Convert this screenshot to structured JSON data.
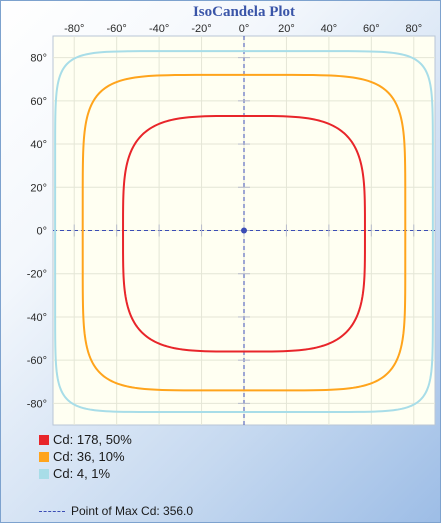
{
  "chart_data": {
    "type": "line",
    "title": "IsoCandela Plot",
    "x_ticks": [
      "-80°",
      "-60°",
      "-40°",
      "-20°",
      "0°",
      "20°",
      "40°",
      "60°",
      "80°"
    ],
    "y_ticks": [
      "80°",
      "60°",
      "40°",
      "20°",
      "0°",
      "-20°",
      "-40°",
      "-60°",
      "-80°"
    ],
    "xlim": [
      -90,
      90
    ],
    "ylim": [
      -90,
      90
    ],
    "grid": true,
    "series": [
      {
        "name": "Cd: 178, 50%",
        "color": "#e8252a",
        "contour": {
          "left": -57,
          "right": 57,
          "top": 53,
          "bottom": -56,
          "exponent": 4
        }
      },
      {
        "name": "Cd: 36, 10%",
        "color": "#ffa41c",
        "contour": {
          "left": -76,
          "right": 76,
          "top": 72,
          "bottom": -74,
          "exponent": 6
        }
      },
      {
        "name": "Cd: 4, 1%",
        "color": "#a8dde8",
        "contour": {
          "left": -89,
          "right": 89,
          "top": 83,
          "bottom": -84,
          "exponent": 10
        }
      }
    ],
    "max_point": {
      "label": "Point of Max Cd: 356.0",
      "x": 0,
      "y": 0,
      "color": "#3b4db5"
    }
  }
}
